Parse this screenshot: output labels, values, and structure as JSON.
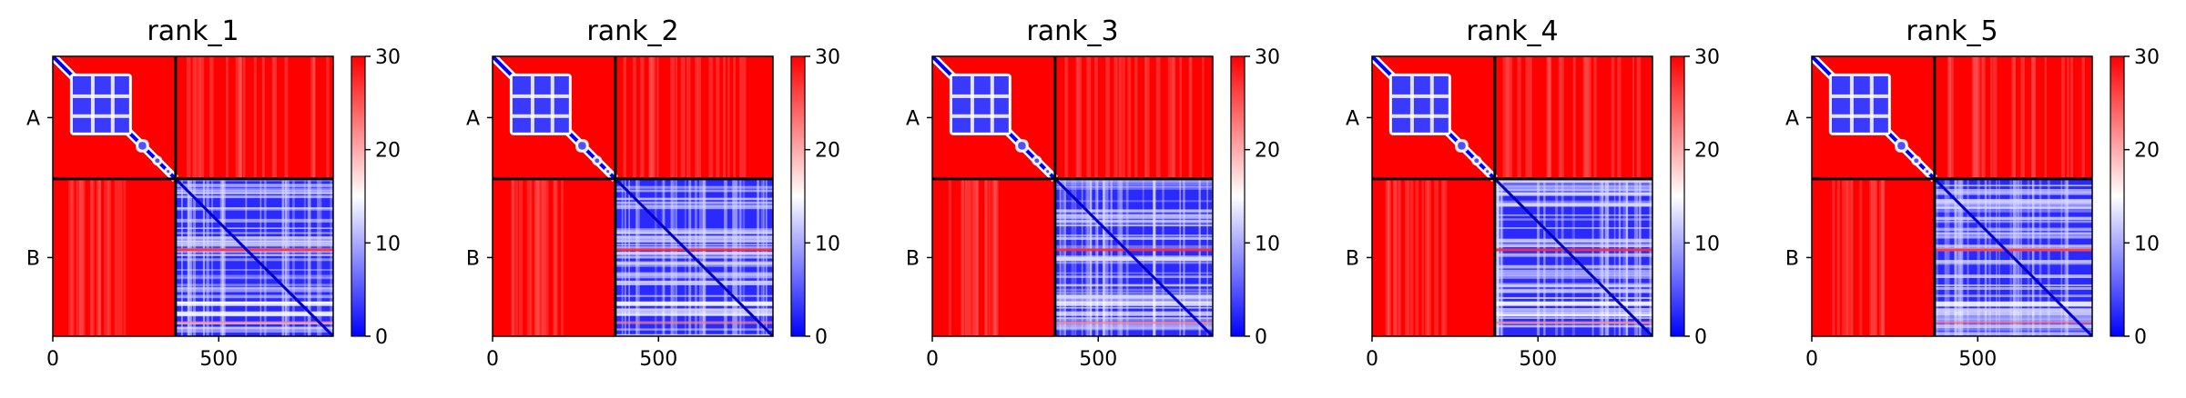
{
  "chart_data": [
    {
      "type": "heatmap",
      "title": "rank_1",
      "chains": [
        "A",
        "B"
      ],
      "chain_boundary": 370,
      "x_ticks": [
        0,
        500
      ],
      "xlim": [
        0,
        845
      ],
      "colorbar": {
        "ticks": [
          0,
          10,
          20,
          30
        ],
        "range": [
          0,
          30
        ],
        "colormap": "bwr"
      }
    },
    {
      "type": "heatmap",
      "title": "rank_2",
      "chains": [
        "A",
        "B"
      ],
      "chain_boundary": 370,
      "x_ticks": [
        0,
        500
      ],
      "xlim": [
        0,
        845
      ],
      "colorbar": {
        "ticks": [
          0,
          10,
          20,
          30
        ],
        "range": [
          0,
          30
        ],
        "colormap": "bwr"
      }
    },
    {
      "type": "heatmap",
      "title": "rank_3",
      "chains": [
        "A",
        "B"
      ],
      "chain_boundary": 370,
      "x_ticks": [
        0,
        500
      ],
      "xlim": [
        0,
        845
      ],
      "colorbar": {
        "ticks": [
          0,
          10,
          20,
          30
        ],
        "range": [
          0,
          30
        ],
        "colormap": "bwr"
      }
    },
    {
      "type": "heatmap",
      "title": "rank_4",
      "chains": [
        "A",
        "B"
      ],
      "chain_boundary": 370,
      "x_ticks": [
        0,
        500
      ],
      "xlim": [
        0,
        845
      ],
      "colorbar": {
        "ticks": [
          0,
          10,
          20,
          30
        ],
        "range": [
          0,
          30
        ],
        "colormap": "bwr"
      }
    },
    {
      "type": "heatmap",
      "title": "rank_5",
      "chains": [
        "A",
        "B"
      ],
      "chain_boundary": 370,
      "x_ticks": [
        0,
        500
      ],
      "xlim": [
        0,
        845
      ],
      "colorbar": {
        "ticks": [
          0,
          10,
          20,
          30
        ],
        "range": [
          0,
          30
        ],
        "colormap": "bwr"
      }
    }
  ],
  "colors": {
    "high": "#ff0000",
    "mid": "#ffffff",
    "low": "#0000ff",
    "boundary": "#000000"
  }
}
